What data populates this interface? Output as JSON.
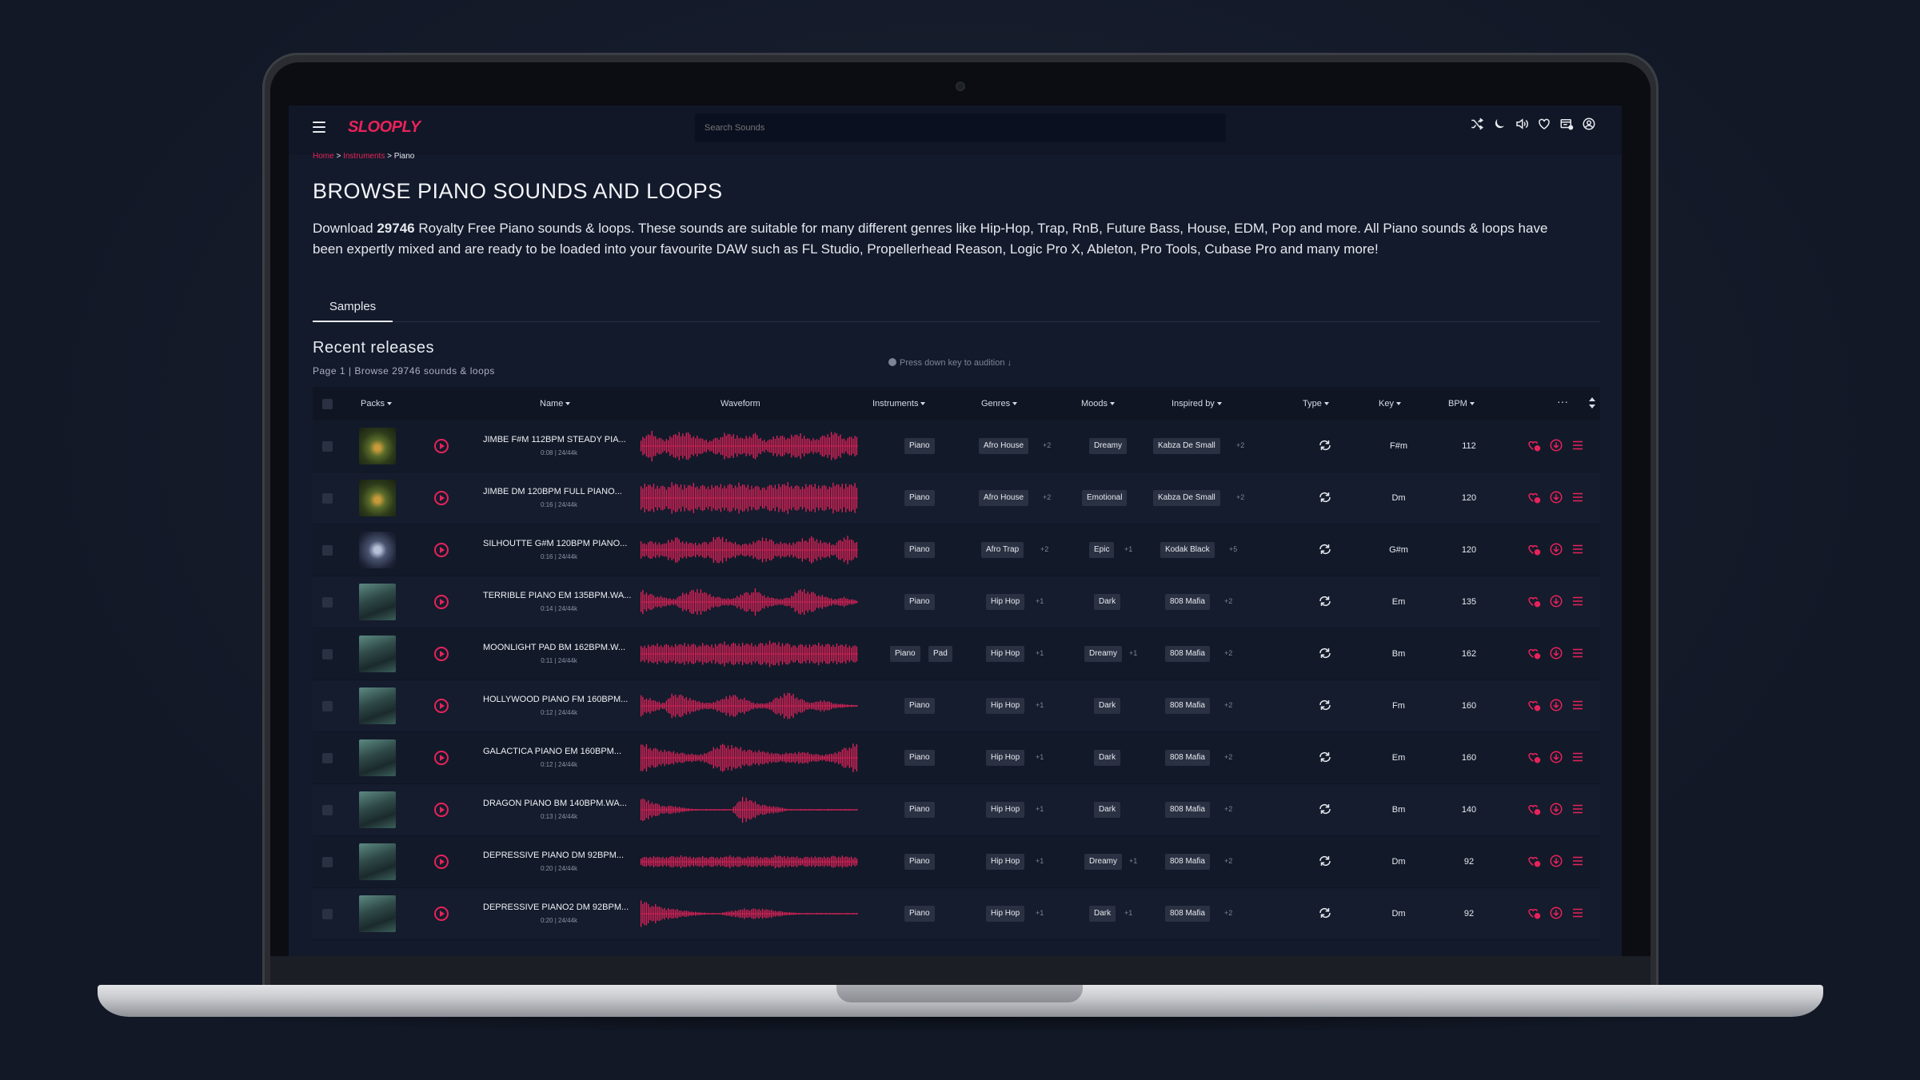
{
  "colors": {
    "accent": "#e8225a",
    "bg": "#131a2b",
    "tag_bg": "#2a3142"
  },
  "app": {
    "logo": "SLOOPLY",
    "search_placeholder": "Search Sounds",
    "top_icons": [
      "shuffle-icon",
      "moon-icon",
      "volume-icon",
      "heart-icon",
      "cart-icon",
      "user-icon"
    ]
  },
  "breadcrumb": {
    "home": "Home",
    "instruments": "Instruments",
    "current": "Piano"
  },
  "page": {
    "title": "BROWSE PIANO SOUNDS AND LOOPS",
    "desc_pre": "Download ",
    "desc_count": "29746",
    "desc_post": " Royalty Free Piano sounds & loops. These sounds are suitable for many different genres like Hip-Hop, Trap, RnB, Future Bass, House, EDM, Pop and more. All Piano sounds & loops have been expertly mixed and are ready to be loaded into your favourite DAW such as FL Studio, Propellerhead Reason, Logic Pro X, Ableton, Pro Tools, Cubase Pro and many more!"
  },
  "tabs": [
    {
      "label": "Samples",
      "active": true
    }
  ],
  "section": {
    "title": "Recent releases",
    "subtitle": "Page 1 | Browse 29746 sounds & loops",
    "hint": "Press down key to audition ↓"
  },
  "columns": {
    "packs": "Packs",
    "name": "Name",
    "waveform": "Waveform",
    "instruments": "Instruments",
    "genres": "Genres",
    "moods": "Moods",
    "inspired": "Inspired by",
    "type": "Type",
    "key": "Key",
    "bpm": "BPM",
    "more": "···"
  },
  "rows": [
    {
      "art": 0,
      "name": "JIMBE F#M 112BPM STEADY PIA...",
      "meta": "0:08 | 24/44k",
      "instruments": [
        "Piano"
      ],
      "genre": "Afro House",
      "genre_more": "+2",
      "mood": "Dreamy",
      "mood_more": "",
      "inspired": "Kabza De Small",
      "inspired_more": "+2",
      "key": "F#m",
      "bpm": "112",
      "wave": "0.55,0.9,0.4,0.8,0.95,0.6,0.35,0.7,0.85,0.5,0.9,0.3,0.75,0.6,0.85,0.4,0.7,0.95,0.5,0.8"
    },
    {
      "art": 0,
      "name": "JIMBE DM 120BPM FULL PIANO...",
      "meta": "0:16 | 24/44k",
      "instruments": [
        "Piano"
      ],
      "genre": "Afro House",
      "genre_more": "+2",
      "mood": "Emotional",
      "mood_more": "",
      "inspired": "Kabza De Small",
      "inspired_more": "+2",
      "key": "Dm",
      "bpm": "120",
      "wave": "0.85,0.9,0.8,0.95,0.85,0.9,0.8,0.85,0.95,0.9,0.8,0.85,0.9,0.95,0.8,0.9,0.85,0.9,0.95,0.85"
    },
    {
      "art": 1,
      "name": "SILHOUTTE G#M 120BPM PIANO...",
      "meta": "0:16 | 24/44k",
      "instruments": [
        "Piano"
      ],
      "genre": "Afro Trap",
      "genre_more": "+2",
      "mood": "Epic",
      "mood_more": "+1",
      "inspired": "Kodak Black",
      "inspired_more": "+5",
      "key": "G#m",
      "bpm": "120",
      "wave": "0.5,0.6,0.4,0.9,0.5,0.45,0.6,0.95,0.5,0.4,0.55,0.85,0.5,0.45,0.6,0.9,0.55,0.4,0.95,0.5"
    },
    {
      "art": 2,
      "name": "TERRIBLE PIANO EM 135BPM.WA...",
      "meta": "0:14 | 24/44k",
      "instruments": [
        "Piano"
      ],
      "genre": "Hip Hop",
      "genre_more": "+1",
      "mood": "Dark",
      "mood_more": "",
      "inspired": "808 Mafia",
      "inspired_more": "+2",
      "key": "Em",
      "bpm": "135",
      "wave": "0.8,0.5,0.3,0.2,0.7,0.9,0.5,0.3,0.2,0.6,0.8,0.4,0.2,0.3,0.85,0.7,0.4,0.2,0.3,0.1"
    },
    {
      "art": 2,
      "name": "MOONLIGHT PAD BM 162BPM.W...",
      "meta": "0:11 | 24/44k",
      "instruments": [
        "Piano",
        "Pad"
      ],
      "genre": "Hip Hop",
      "genre_more": "+1",
      "mood": "Dreamy",
      "mood_more": "+1",
      "inspired": "808 Mafia",
      "inspired_more": "+2",
      "key": "Bm",
      "bpm": "162",
      "wave": "0.55,0.6,0.65,0.6,0.7,0.65,0.6,0.7,0.75,0.7,0.65,0.8,0.75,0.7,0.65,0.6,0.7,0.65,0.6,0.55"
    },
    {
      "art": 2,
      "name": "HOLLYWOOD PIANO FM 160BPM...",
      "meta": "0:12 | 24/44k",
      "instruments": [
        "Piano"
      ],
      "genre": "Hip Hop",
      "genre_more": "+1",
      "mood": "Dark",
      "mood_more": "",
      "inspired": "808 Mafia",
      "inspired_more": "+2",
      "key": "Fm",
      "bpm": "160",
      "wave": "0.7,0.4,0.2,0.9,0.6,0.3,0.2,0.4,0.8,0.5,0.2,0.15,0.6,0.9,0.5,0.2,0.4,0.2,0.1,0.05"
    },
    {
      "art": 2,
      "name": "GALACTICA PIANO EM 160BPM...",
      "meta": "0:12 | 24/44k",
      "instruments": [
        "Piano"
      ],
      "genre": "Hip Hop",
      "genre_more": "+1",
      "mood": "Dark",
      "mood_more": "",
      "inspired": "808 Mafia",
      "inspired_more": "+2",
      "key": "Em",
      "bpm": "160",
      "wave": "0.9,0.7,0.5,0.4,0.3,0.2,0.4,0.95,0.8,0.6,0.5,0.4,0.3,0.3,0.4,0.3,0.2,0.3,0.7,0.9"
    },
    {
      "art": 2,
      "name": "DRAGON PIANO BM 140BPM.WA...",
      "meta": "0:13 | 24/44k",
      "instruments": [
        "Piano"
      ],
      "genre": "Hip Hop",
      "genre_more": "+1",
      "mood": "Dark",
      "mood_more": "",
      "inspired": "808 Mafia",
      "inspired_more": "+2",
      "key": "Bm",
      "bpm": "140",
      "wave": "0.8,0.5,0.3,0.25,0.1,0.05,0.05,0.05,0.05,0.9,0.5,0.3,0.2,0.05,0.05,0.05,0.05,0.05,0.05,0.05"
    },
    {
      "art": 2,
      "name": "DEPRESSIVE PIANO DM 92BPM...",
      "meta": "0:20 | 24/44k",
      "instruments": [
        "Piano"
      ],
      "genre": "Hip Hop",
      "genre_more": "+1",
      "mood": "Dreamy",
      "mood_more": "+1",
      "inspired": "808 Mafia",
      "inspired_more": "+2",
      "key": "Dm",
      "bpm": "92",
      "wave": "0.3,0.35,0.3,0.4,0.35,0.3,0.35,0.3,0.4,0.3,0.35,0.3,0.4,0.35,0.3,0.35,0.3,0.4,0.35,0.3"
    },
    {
      "art": 2,
      "name": "DEPRESSIVE PIANO2 DM 92BPM...",
      "meta": "0:20 | 24/44k",
      "instruments": [
        "Piano"
      ],
      "genre": "Hip Hop",
      "genre_more": "+1",
      "mood": "Dark",
      "mood_more": "+1",
      "inspired": "808 Mafia",
      "inspired_more": "+2",
      "key": "Dm",
      "bpm": "92",
      "wave": "0.9,0.6,0.4,0.3,0.2,0.1,0.05,0.05,0.2,0.3,0.35,0.3,0.2,0.1,0.05,0.05,0.05,0.05,0.05,0.05"
    }
  ]
}
